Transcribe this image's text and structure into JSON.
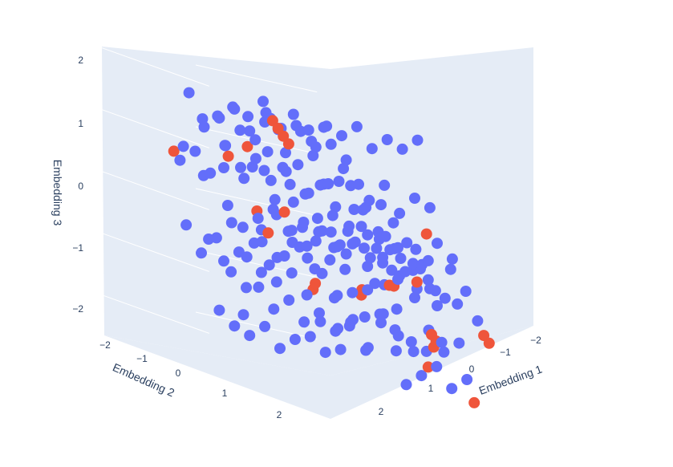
{
  "chart_data": {
    "type": "scatter",
    "projection": "3d",
    "xlabel": "Embedding 1",
    "ylabel": "Embedding 2",
    "zlabel": "Embedding 3",
    "x_ticks": [
      "−2",
      "−1",
      "0",
      "1",
      "2"
    ],
    "y_ticks": [
      "−2",
      "−1",
      "0",
      "1",
      "2"
    ],
    "z_ticks": [
      "−2",
      "−1",
      "0",
      "1",
      "2"
    ],
    "xlim": [
      -2.4,
      2.4
    ],
    "ylim": [
      -2.4,
      2.4
    ],
    "zlim": [
      -2.4,
      2.4
    ],
    "grid": true,
    "colors": {
      "background": "#e5ecf6",
      "grid": "#ffffff",
      "series_a": "#636efa",
      "series_b": "#ef553b",
      "text": "#2a3f5f"
    },
    "series": [
      {
        "color": "#636efa",
        "x": [
          -1.2,
          -0.9,
          -0.6,
          -0.3,
          0,
          0.3,
          0.6,
          0.9,
          1.2,
          -1.2,
          -0.9,
          -0.6,
          -0.3,
          0,
          0.3,
          0.6,
          0.9,
          1.2,
          -1.0,
          -0.7,
          -0.4,
          -0.1,
          0.2,
          0.5,
          0.8,
          1.1,
          -1.0,
          -0.7,
          -0.4,
          -0.1,
          0.2,
          0.5,
          0.8,
          1.1,
          -0.8,
          -0.5,
          -0.2,
          0.1,
          0.4,
          0.7,
          1.0,
          -0.8,
          -0.5,
          -0.2,
          0.1,
          0.4,
          0.7,
          -0.6,
          -0.3,
          0,
          0.3,
          0.6,
          -0.6,
          -0.3,
          0,
          0.3,
          0.6,
          -1.4,
          -1.1,
          -0.8,
          -0.5,
          -0.2,
          0.1,
          0.4,
          0.7,
          1.0,
          1.3,
          -1.4,
          -1.1,
          -0.8,
          -0.5,
          -0.2,
          0.1,
          0.4,
          0.7,
          1.0,
          1.3,
          -1.5,
          -1.2,
          -0.9,
          -0.6,
          -0.3,
          0,
          0.3,
          0.6,
          0.9,
          1.2,
          1.5,
          -1.5,
          -1.2,
          -0.9,
          -0.6,
          -0.3,
          0,
          0.3,
          0.6,
          0.9,
          1.2,
          1.5,
          -1.3,
          -1.0,
          -0.7,
          -0.4,
          -0.1,
          0.2,
          0.5,
          0.8,
          1.1,
          1.4,
          -1.3,
          -1.0,
          -0.7,
          -0.4,
          -0.1,
          0.2,
          0.5,
          0.8,
          1.1,
          1.4,
          -1.1,
          -0.8,
          -0.5,
          -0.2,
          0.1,
          0.4,
          0.7,
          1.0,
          1.3,
          -1.1,
          -0.8,
          -0.5,
          -0.2,
          0.1,
          0.4,
          0.7,
          1.0,
          1.3,
          -0.9,
          -0.6,
          -0.3,
          0,
          0.3,
          0.6,
          0.9,
          1.2,
          -0.9,
          -0.6,
          -0.3,
          0,
          0.3,
          0.6,
          0.9,
          -0.7,
          -0.4,
          -0.1,
          0.2,
          0.5,
          0.8,
          -0.7,
          -0.4,
          -0.1,
          0.2,
          0.5,
          -1.6,
          -1.3,
          -1.0,
          -0.7,
          -0.4,
          -0.1,
          0.2,
          0.5,
          0.8,
          1.1,
          1.4,
          1.7,
          -1.6,
          -1.3,
          -1.0,
          -0.7,
          -0.4,
          -0.1,
          0.2,
          0.5,
          0.8,
          1.1,
          1.4,
          1.7,
          -1.2,
          -0.9,
          -0.6,
          -0.3,
          0,
          0.3,
          0.6,
          0.9,
          1.2,
          -1.2,
          -0.9,
          -0.6,
          -0.3,
          0,
          0.3,
          0.6,
          0.9,
          1.2,
          -0.8,
          -0.4,
          0,
          0.4,
          0.8,
          -0.8,
          -0.4,
          0,
          0.4,
          0.8
        ],
        "y": [
          -1.2,
          -1.2,
          -1.2,
          -1.2,
          -1.2,
          -1.2,
          -1.2,
          -1.2,
          -1.2,
          -0.8,
          -0.8,
          -0.8,
          -0.8,
          -0.8,
          -0.8,
          -0.8,
          -0.8,
          -0.8,
          -0.4,
          -0.4,
          -0.4,
          -0.4,
          -0.4,
          -0.4,
          -0.4,
          -0.4,
          0,
          0,
          0,
          0,
          0,
          0,
          0,
          0,
          0.4,
          0.4,
          0.4,
          0.4,
          0.4,
          0.4,
          0.4,
          0.8,
          0.8,
          0.8,
          0.8,
          0.8,
          0.8,
          1.2,
          1.2,
          1.2,
          1.2,
          1.2,
          1.5,
          1.5,
          1.5,
          1.5,
          1.5,
          -1.0,
          -1.0,
          -1.0,
          -1.0,
          -1.0,
          -1.0,
          -1.0,
          -1.0,
          -1.0,
          -1.0,
          -0.6,
          -0.6,
          -0.6,
          -0.6,
          -0.6,
          -0.6,
          -0.6,
          -0.6,
          -0.6,
          -0.6,
          -0.2,
          -0.2,
          -0.2,
          -0.2,
          -0.2,
          -0.2,
          -0.2,
          -0.2,
          -0.2,
          -0.2,
          -0.2,
          0.2,
          0.2,
          0.2,
          0.2,
          0.2,
          0.2,
          0.2,
          0.2,
          0.2,
          0.2,
          0.2,
          0.6,
          0.6,
          0.6,
          0.6,
          0.6,
          0.6,
          0.6,
          0.6,
          0.6,
          0.6,
          1.0,
          1.0,
          1.0,
          1.0,
          1.0,
          1.0,
          1.0,
          1.0,
          1.0,
          1.0,
          -1.4,
          -1.4,
          -1.4,
          -1.4,
          -1.4,
          -1.4,
          -1.4,
          -1.4,
          -1.4,
          1.3,
          1.3,
          1.3,
          1.3,
          1.3,
          1.3,
          1.3,
          1.3,
          1.3,
          -1.6,
          -1.6,
          -1.6,
          -1.6,
          -1.6,
          -1.6,
          -1.6,
          -1.6,
          1.6,
          1.6,
          1.6,
          1.6,
          1.6,
          1.6,
          1.6,
          -1.8,
          -1.8,
          -1.8,
          -1.8,
          -1.8,
          -1.8,
          1.8,
          1.8,
          1.8,
          1.8,
          1.8,
          -0.3,
          -0.3,
          -0.3,
          -0.3,
          -0.3,
          -0.3,
          -0.3,
          -0.3,
          -0.3,
          -0.3,
          -0.3,
          -0.3,
          0.3,
          0.3,
          0.3,
          0.3,
          0.3,
          0.3,
          0.3,
          0.3,
          0.3,
          0.3,
          0.3,
          0.3,
          -0.9,
          -0.9,
          -0.9,
          -0.9,
          -0.9,
          -0.9,
          -0.9,
          -0.9,
          -0.9,
          0.9,
          0.9,
          0.9,
          0.9,
          0.9,
          0.9,
          0.9,
          0.9,
          0.9,
          -1.9,
          -1.9,
          -1.9,
          -1.9,
          -1.9,
          1.9,
          1.9,
          1.9,
          1.9,
          1.9
        ],
        "z": [
          1.6,
          1.5,
          1.7,
          1.4,
          1.8,
          1.5,
          1.6,
          1.4,
          1.3,
          1.2,
          1.4,
          1.3,
          1.5,
          1.1,
          1.6,
          1.2,
          1.3,
          1.0,
          0.9,
          1.1,
          0.8,
          1.2,
          1.0,
          0.9,
          1.1,
          0.8,
          0.7,
          0.6,
          0.9,
          0.5,
          0.8,
          0.6,
          0.7,
          0.4,
          0.5,
          0.3,
          0.6,
          0.2,
          0.4,
          0.3,
          0.1,
          0.2,
          0.0,
          0.3,
          -0.1,
          0.1,
          0.0,
          -0.2,
          -0.1,
          -0.3,
          0.0,
          -0.2,
          -0.4,
          -0.3,
          -0.5,
          -0.2,
          -0.4,
          -0.6,
          -0.5,
          -0.7,
          -0.4,
          -0.6,
          -0.8,
          -0.5,
          -0.7,
          -0.9,
          -0.6,
          -0.8,
          -0.9,
          -1.0,
          -0.7,
          -1.1,
          -0.8,
          -1.0,
          -0.9,
          -1.2,
          -1.0,
          -1.3,
          -1.1,
          -1.2,
          -1.4,
          -1.0,
          -1.3,
          -1.5,
          -1.2,
          -1.4,
          -1.1,
          -1.6,
          1.9,
          1.7,
          1.8,
          1.6,
          1.9,
          1.7,
          1.8,
          1.5,
          1.7,
          1.6,
          1.8,
          0.9,
          1.0,
          0.7,
          1.1,
          0.8,
          0.6,
          1.0,
          0.9,
          0.7,
          0.5,
          0.2,
          0.4,
          0.0,
          0.3,
          -0.2,
          0.1,
          0.4,
          -0.1,
          0.2,
          0.0,
          -0.6,
          -0.4,
          -0.7,
          -0.5,
          -0.8,
          -0.3,
          -0.6,
          -0.9,
          -0.5,
          -1.1,
          -1.3,
          -1.0,
          -1.4,
          -1.2,
          -0.9,
          -1.5,
          -1.1,
          -1.3,
          0.7,
          0.5,
          0.8,
          0.6,
          0.9,
          0.4,
          0.7,
          0.5,
          -0.2,
          0.1,
          -0.3,
          0.0,
          -0.1,
          0.2,
          -0.4,
          1.4,
          1.2,
          1.5,
          1.3,
          1.1,
          1.6,
          -1.6,
          -1.8,
          -1.5,
          -1.7,
          -1.9,
          0.0,
          0.1,
          -0.1,
          0.2,
          -0.2,
          0.0,
          0.1,
          -0.1,
          0.2,
          0.0,
          -0.2,
          0.1,
          0.0,
          -0.1,
          0.1,
          -0.2,
          0.2,
          0.0,
          -0.1,
          0.1,
          -0.2,
          0.0,
          0.2,
          -0.1,
          -1.9,
          -2.0,
          -1.8,
          -1.9,
          -2.1,
          -1.8,
          -2.0,
          -1.9,
          -1.7,
          -1.2,
          -1.4,
          -1.3,
          -1.5,
          -1.1,
          -1.6,
          -1.2,
          -1.4,
          -1.3,
          0.6,
          0.4,
          0.5,
          0.3,
          0.7,
          -0.6,
          -0.4,
          -0.5,
          -0.3,
          -0.7
        ]
      },
      {
        "color": "#ef553b",
        "x": [
          -1.3,
          -1.35,
          -1.4,
          -1.45,
          0.2,
          -0.9,
          1.1,
          1.9,
          -0.6,
          0.3,
          -1.2,
          0.8,
          1.6,
          1.5,
          -0.2,
          -0.1,
          0.0,
          1.3,
          1.4,
          -0.4,
          0.4,
          -1.7,
          -1.75,
          0.9,
          -0.5
        ],
        "y": [
          -2.2,
          -2.15,
          -2.1,
          -2.05,
          -1.3,
          0.9,
          -1.8,
          0.4,
          1.0,
          1.4,
          -1.9,
          -1.1,
          2.0,
          1.9,
          1.7,
          1.75,
          1.8,
          0.9,
          0.95,
          2.2,
          2.1,
          1.2,
          1.25,
          -0.3,
          0.6
        ],
        "z": [
          1.4,
          1.3,
          1.2,
          1.1,
          1.0,
          0.5,
          0.6,
          0.2,
          -0.3,
          -0.4,
          0.0,
          0.8,
          -0.5,
          -0.6,
          -1.1,
          -1.2,
          -1.0,
          -0.7,
          -0.8,
          -1.9,
          -1.5,
          -0.9,
          -1.0,
          -0.2,
          -0.5
        ]
      }
    ]
  }
}
